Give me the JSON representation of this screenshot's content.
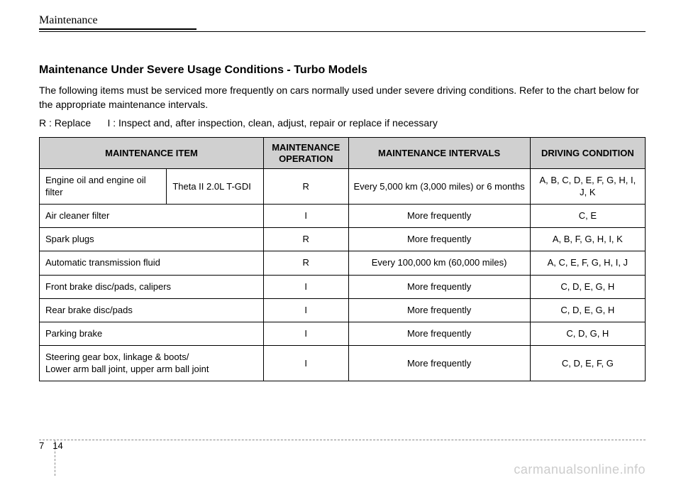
{
  "header": {
    "category": "Maintenance"
  },
  "section": {
    "title": "Maintenance Under Severe Usage Conditions - Turbo Models",
    "intro": "The following items must be serviced more frequently on cars normally used under severe driving conditions. Refer to the chart below for the appropriate maintenance intervals.",
    "legend": "R : Replace      I : Inspect and, after inspection, clean, adjust, repair or replace if necessary"
  },
  "table": {
    "headers": {
      "item": "MAINTENANCE ITEM",
      "operation": "MAINTENANCE OPERATION",
      "intervals": "MAINTENANCE INTERVALS",
      "condition": "DRIVING CONDITION"
    },
    "rows": [
      {
        "item": "Engine oil and engine oil filter",
        "sub": "Theta II 2.0L T-GDI",
        "operation": "R",
        "interval": "Every 5,000 km (3,000 miles) or 6 months",
        "condition": "A, B, C, D, E, F, G, H, I, J, K",
        "hasSub": true
      },
      {
        "item": "Air cleaner filter",
        "operation": "I",
        "interval": "More frequently",
        "condition": "C, E",
        "hasSub": false
      },
      {
        "item": "Spark plugs",
        "operation": "R",
        "interval": "More frequently",
        "condition": "A, B, F, G, H, I, K",
        "hasSub": false
      },
      {
        "item": "Automatic transmission fluid",
        "operation": "R",
        "interval": "Every 100,000 km (60,000 miles)",
        "condition": "A, C, E, F, G, H, I, J",
        "hasSub": false
      },
      {
        "item": "Front brake disc/pads, calipers",
        "operation": "I",
        "interval": "More frequently",
        "condition": "C, D, E, G, H",
        "hasSub": false
      },
      {
        "item": "Rear brake disc/pads",
        "operation": "I",
        "interval": "More frequently",
        "condition": "C, D, E, G, H",
        "hasSub": false
      },
      {
        "item": "Parking brake",
        "operation": "I",
        "interval": "More frequently",
        "condition": "C, D, G, H",
        "hasSub": false
      },
      {
        "item": "Steering gear box, linkage & boots/\nLower arm ball joint, upper arm ball joint",
        "operation": "I",
        "interval": "More frequently",
        "condition": "C, D, E, F, G",
        "hasSub": false
      }
    ],
    "styling": {
      "header_bg": "#d0d0d0",
      "border_color": "#000000",
      "font_size": 13,
      "header_font_weight": "bold",
      "column_widths_pct": [
        21,
        16,
        14,
        30,
        19
      ]
    }
  },
  "footer": {
    "chapter": "7",
    "page": "14",
    "watermark": "carmanualsonline.info"
  },
  "styling": {
    "page_bg": "#ffffff",
    "text_color": "#000000",
    "watermark_color": "#cccccc",
    "font_family": "Arial, Helvetica, sans-serif",
    "header_font_family": "Georgia, 'Times New Roman', serif"
  }
}
